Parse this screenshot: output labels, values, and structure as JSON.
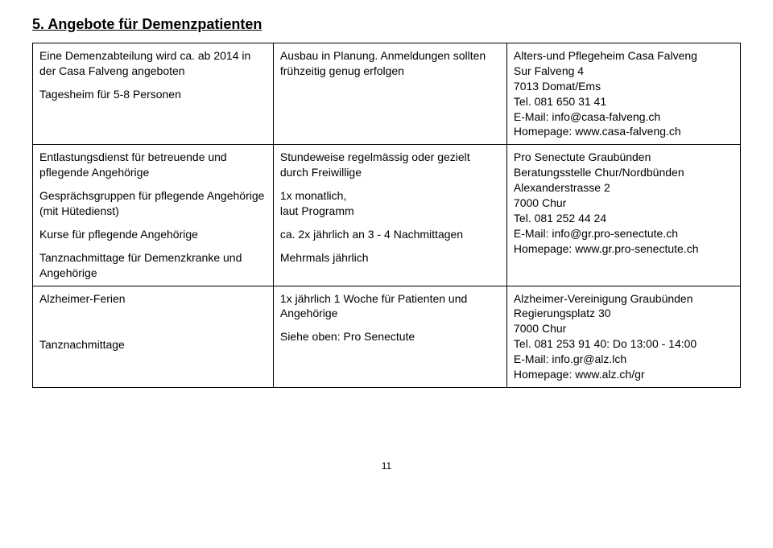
{
  "heading": "5.   Angebote für Demenzpatienten",
  "table": {
    "rows": [
      {
        "c1": [
          "Eine Demenzabteilung wird ca. ab 2014 in der Casa Falveng angeboten",
          "Tagesheim für 5-8 Personen"
        ],
        "c2": [
          "Ausbau in Planung. Anmeldungen sollten frühzeitig genug erfolgen"
        ],
        "c3": [
          "Alters-und Pflegeheim Casa Falveng",
          "Sur Falveng 4",
          "7013 Domat/Ems",
          "Tel. 081 650 31 41",
          "E-Mail: info@casa-falveng.ch",
          "Homepage: www.casa-falveng.ch"
        ]
      },
      {
        "c1": [
          "Entlastungsdienst für betreuende und pflegende Angehörige",
          "Gesprächsgruppen für pflegende Angehörige (mit Hütedienst)",
          "Kurse für pflegende Angehörige",
          "Tanznachmittage für Demenzkranke und Angehörige"
        ],
        "c2": [
          "Stundeweise regelmässig oder gezielt durch Freiwillige",
          "1x monatlich,\nlaut Programm",
          "ca. 2x jährlich an 3 - 4 Nachmittagen",
          "Mehrmals jährlich"
        ],
        "c3": [
          "",
          "Pro Senectute Graubünden",
          "Beratungsstelle Chur/Nordbünden",
          "Alexanderstrasse 2",
          "7000 Chur",
          "Tel. 081 252 44 24",
          "E-Mail: info@gr.pro-senectute.ch",
          "Homepage: www.gr.pro-senectute.ch"
        ]
      },
      {
        "c1": [
          "Alzheimer-Ferien",
          "",
          "Tanznachmittage"
        ],
        "c2": [
          "1x jährlich 1 Woche für Patienten und Angehörige",
          "Siehe oben: Pro Senectute"
        ],
        "c3": [
          "Alzheimer-Vereinigung Graubünden",
          "Regierungsplatz 30",
          "7000 Chur",
          "Tel. 081 253 91 40: Do 13:00 - 14:00",
          "E-Mail: info.gr@alz.lch",
          "Homepage: www.alz.ch/gr"
        ]
      }
    ]
  },
  "pageNumber": "11"
}
